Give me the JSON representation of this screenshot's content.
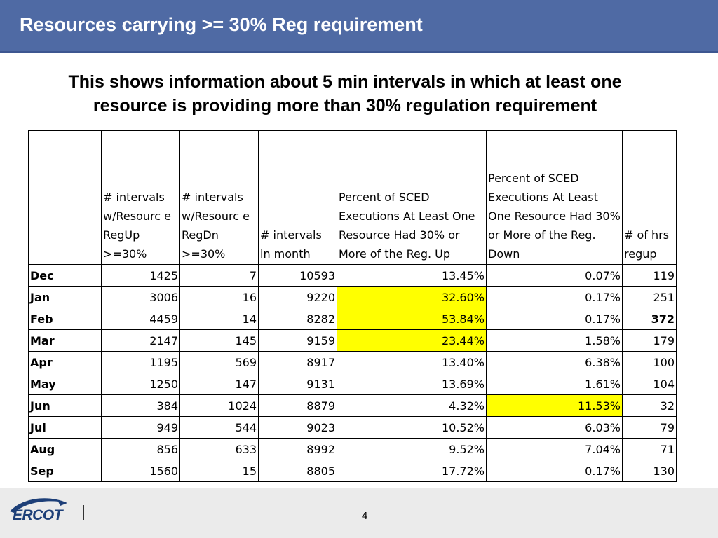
{
  "slide": {
    "title": "Resources carrying >= 30% Reg requirement",
    "subtitle_line1": "This shows information about 5 min intervals in which at least one",
    "subtitle_line2": "resource is providing more than 30% regulation requirement",
    "page_number": "4"
  },
  "table": {
    "headers": [
      "",
      "# intervals w/Resourc e RegUp >=30%",
      "# intervals w/Resourc e RegDn >=30%",
      "# intervals in month",
      "Percent of SCED Executions At Least One Resource Had 30% or More of the Reg. Up",
      "Percent of SCED Executions At Least One Resource Had 30% or More of the Reg. Down",
      "# of hrs regup"
    ],
    "rows": [
      [
        "Dec",
        "1425",
        "7",
        "10593",
        "13.45%",
        "0.07%",
        "119"
      ],
      [
        "Jan",
        "3006",
        "16",
        "9220",
        "32.60%",
        "0.17%",
        "251"
      ],
      [
        "Feb",
        "4459",
        "14",
        "8282",
        "53.84%",
        "0.17%",
        "372"
      ],
      [
        "Mar",
        "2147",
        "145",
        "9159",
        "23.44%",
        "1.58%",
        "179"
      ],
      [
        "Apr",
        "1195",
        "569",
        "8917",
        "13.40%",
        "6.38%",
        "100"
      ],
      [
        "May",
        "1250",
        "147",
        "9131",
        "13.69%",
        "1.61%",
        "104"
      ],
      [
        "Jun",
        "384",
        "1024",
        "8879",
        "4.32%",
        "11.53%",
        "32"
      ],
      [
        "Jul",
        "949",
        "544",
        "9023",
        "10.52%",
        "6.03%",
        "79"
      ],
      [
        "Aug",
        "856",
        "633",
        "8992",
        "9.52%",
        "7.04%",
        "71"
      ],
      [
        "Sep",
        "1560",
        "15",
        "8805",
        "17.72%",
        "0.17%",
        "130"
      ]
    ],
    "highlighted_cells": [
      [
        1,
        4
      ],
      [
        2,
        4
      ],
      [
        3,
        4
      ],
      [
        6,
        5
      ]
    ],
    "bold_cells": [
      [
        2,
        6
      ]
    ],
    "highlight_color": "#ffff00"
  },
  "footer": {
    "logo_text": "ERCOT",
    "logo_icon": "ercot-swoosh-icon"
  },
  "colors": {
    "title_bar": "#4f6aa4",
    "logo_blue": "#1d3f78",
    "footer_bg": "#ebebeb"
  }
}
